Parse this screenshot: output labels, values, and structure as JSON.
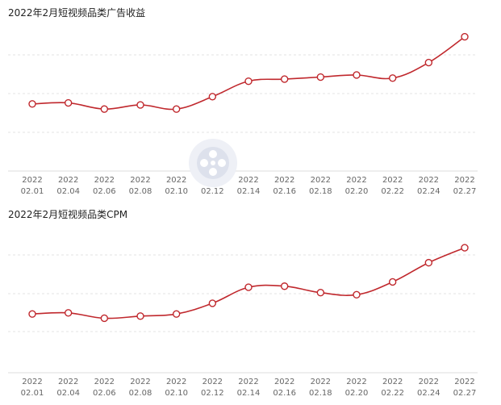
{
  "chart_data": [
    {
      "type": "line",
      "title": "2022年2月短视频品类广告收益",
      "categories": [
        "2022\n02.01",
        "2022\n02.04",
        "2022\n02.06",
        "2022\n02.08",
        "2022\n02.10",
        "2022\n02.12",
        "2022\n02.14",
        "2022\n02.16",
        "2022\n02.18",
        "2022\n02.20",
        "2022\n02.22",
        "2022\n02.24",
        "2022\n02.27"
      ],
      "series": [
        {
          "values": [
            35,
            36,
            30,
            34,
            30,
            42,
            57,
            59,
            61,
            63,
            60,
            75,
            100
          ]
        }
      ],
      "ylim": [
        -30,
        120
      ],
      "grid": true,
      "y_tick_labels": false,
      "color": "#c0282d"
    },
    {
      "type": "line",
      "title": "2022年2月短视频品类CPM",
      "categories": [
        "2022\n02.01",
        "2022\n02.04",
        "2022\n02.06",
        "2022\n02.08",
        "2022\n02.10",
        "2022\n02.12",
        "2022\n02.14",
        "2022\n02.16",
        "2022\n02.18",
        "2022\n02.20",
        "2022\n02.22",
        "2022\n02.24",
        "2022\n02.27"
      ],
      "series": [
        {
          "values": [
            15,
            16,
            11,
            13,
            15,
            25,
            40,
            41,
            35,
            33,
            45,
            63,
            77
          ]
        }
      ],
      "ylim": [
        -40,
        105
      ],
      "grid": true,
      "y_tick_labels": false,
      "color": "#c0282d"
    }
  ]
}
